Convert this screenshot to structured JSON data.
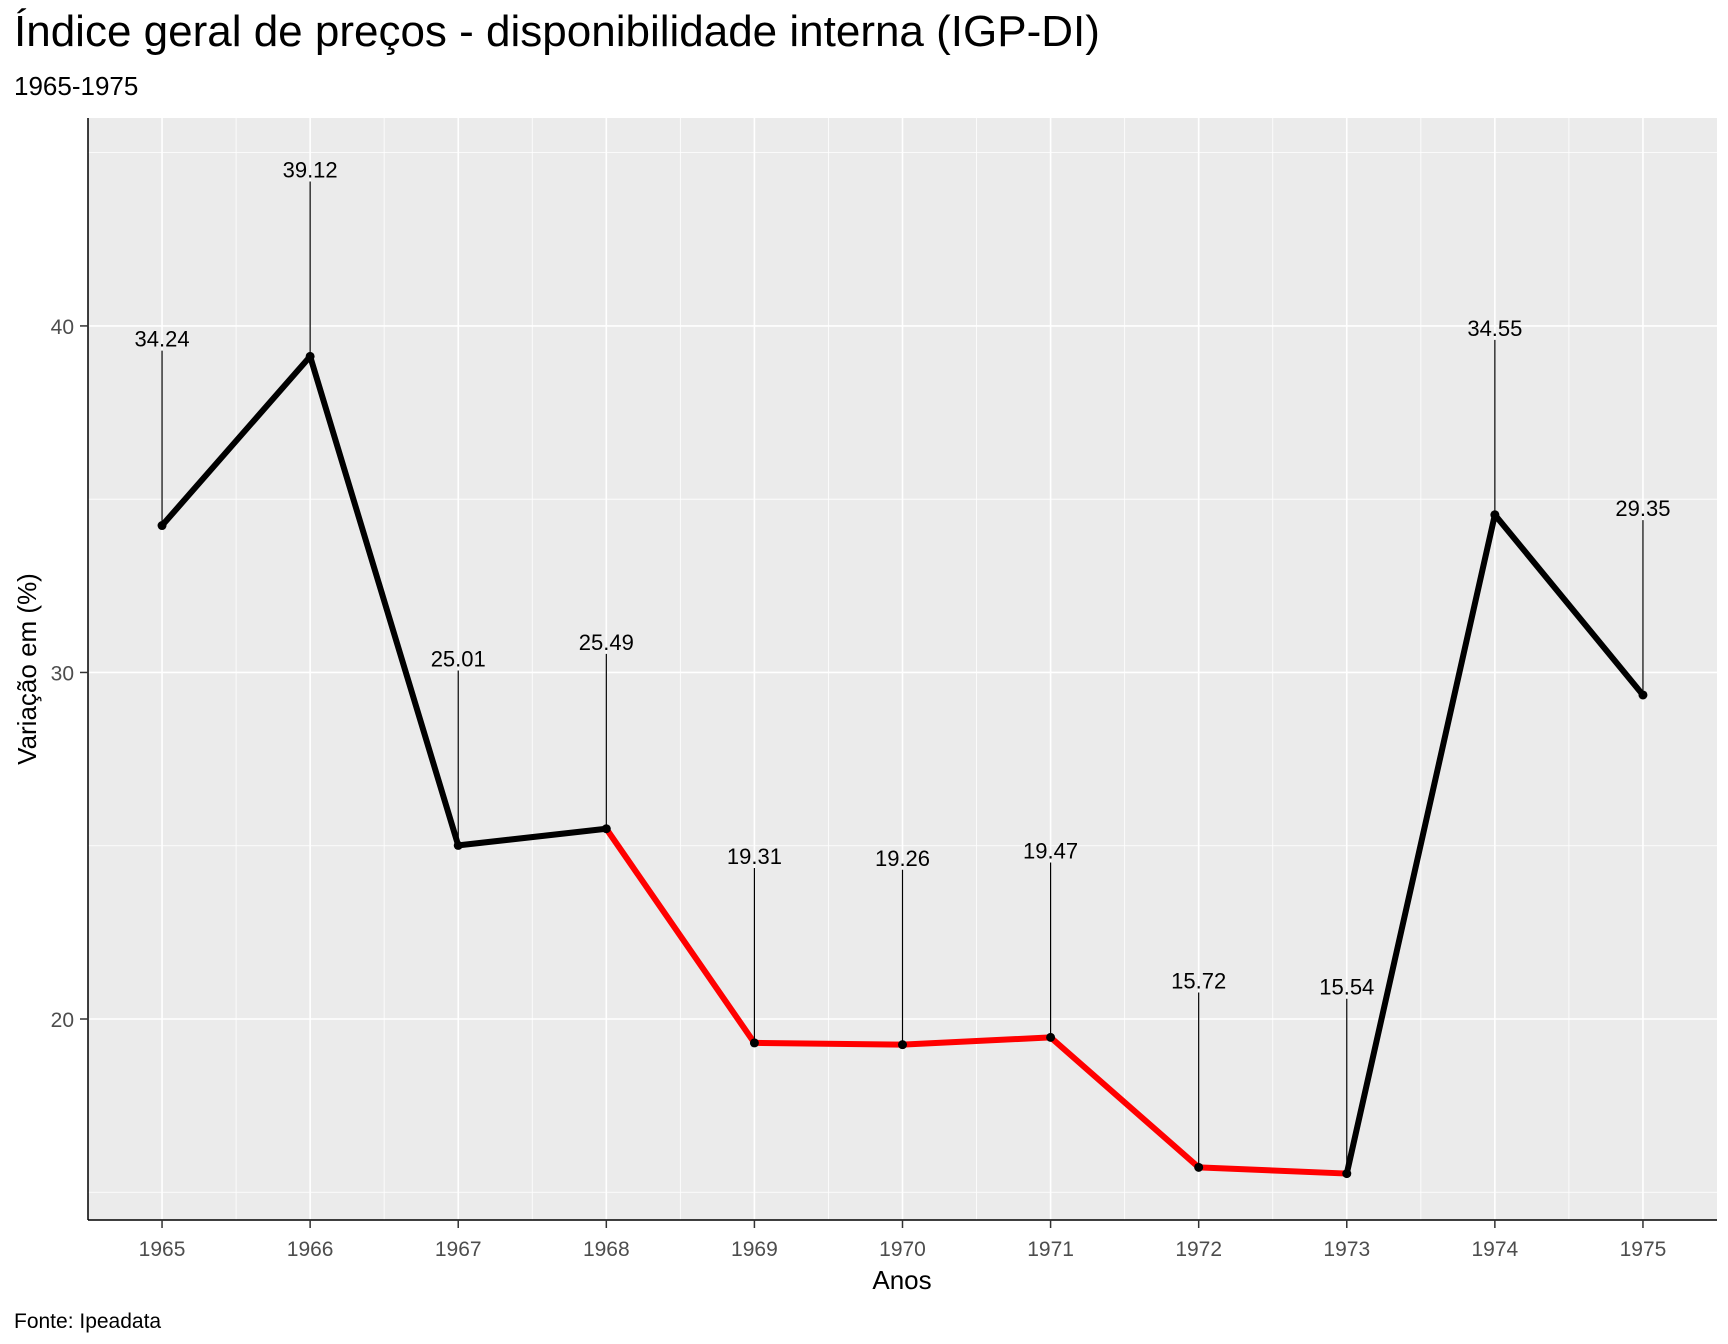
{
  "chart_data": {
    "type": "line",
    "title": "Índice geral de preços - disponibilidade interna (IGP-DI)",
    "subtitle": "1965-1975",
    "caption": "Fonte: Ipeadata",
    "xlabel": "Anos",
    "ylabel": "Variação em (%)",
    "x": [
      1965,
      1966,
      1967,
      1968,
      1969,
      1970,
      1971,
      1972,
      1973,
      1974,
      1975
    ],
    "values": [
      34.24,
      39.12,
      25.01,
      25.49,
      19.31,
      19.26,
      19.47,
      15.72,
      15.54,
      34.55,
      29.35
    ],
    "data_labels": [
      "34.24",
      "39.12",
      "25.01",
      "25.49",
      "19.31",
      "19.26",
      "19.47",
      "15.72",
      "15.54",
      "34.55",
      "29.35"
    ],
    "yticks": [
      20,
      30,
      40
    ],
    "ylim": [
      14.2,
      46
    ],
    "xlim": [
      1964.5,
      1975.5
    ],
    "grid": true,
    "label_offset": 4.7,
    "segment_colors": [
      "#000000",
      "#000000",
      "#000000",
      "#ff0000",
      "#ff0000",
      "#ff0000",
      "#ff0000",
      "#ff0000",
      "#000000",
      "#000000"
    ],
    "colors": {
      "base_line": "#000000",
      "highlight_line": "#ff0000",
      "panel_bg": "#ebebeb",
      "grid": "#ffffff"
    }
  }
}
